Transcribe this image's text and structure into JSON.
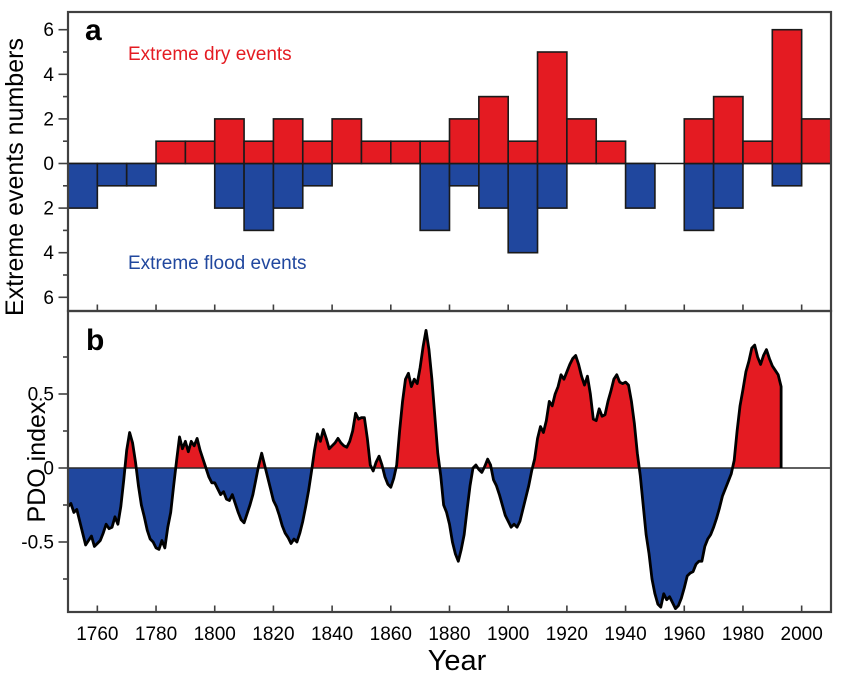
{
  "figure": {
    "xlabel": "Year",
    "xlim": [
      1750,
      2010
    ],
    "xticks": [
      1760,
      1780,
      1800,
      1820,
      1840,
      1860,
      1880,
      1900,
      1920,
      1940,
      1960,
      1980,
      2000
    ],
    "background": "#ffffff"
  },
  "colors": {
    "dry_red": "#e41b22",
    "flood_blue": "#20479e",
    "frame": "#404040",
    "bar_outline": "#1a1a1a",
    "curve": "#000000",
    "zero_line": "#1a1a1a"
  },
  "chart_data": [
    {
      "id": "panel_a",
      "type": "bar",
      "panel_label": "a",
      "ylabel": "Extreme events numbers",
      "bar_width_years": 10,
      "decade_start_years": [
        1750,
        1760,
        1770,
        1780,
        1790,
        1800,
        1810,
        1820,
        1830,
        1840,
        1850,
        1860,
        1870,
        1880,
        1890,
        1900,
        1910,
        1920,
        1930,
        1940,
        1950,
        1960,
        1970,
        1980,
        1990,
        2000
      ],
      "series": [
        {
          "name": "Extreme dry events",
          "direction": "positive",
          "color_key": "dry_red",
          "values": [
            0,
            0,
            0,
            1,
            1,
            2,
            1,
            2,
            1,
            2,
            1,
            1,
            1,
            2,
            3,
            1,
            5,
            2,
            1,
            0,
            0,
            2,
            3,
            1,
            6,
            2
          ]
        },
        {
          "name": "Extreme flood events",
          "direction": "negative",
          "color_key": "flood_blue",
          "values": [
            2,
            1,
            1,
            0,
            0,
            2,
            3,
            2,
            1,
            0,
            0,
            0,
            3,
            1,
            2,
            4,
            2,
            0,
            0,
            2,
            0,
            3,
            2,
            0,
            1,
            0
          ]
        }
      ],
      "ylim": [
        -6.6,
        6.8
      ],
      "yticks_major": [
        -6,
        -4,
        -2,
        0,
        2,
        4,
        6
      ],
      "ytick_labels": [
        "6",
        "4",
        "2",
        "0",
        "2",
        "4",
        "6"
      ],
      "yticks_minor": [
        -5,
        -3,
        -1,
        1,
        3,
        5
      ]
    },
    {
      "id": "panel_b",
      "type": "area",
      "panel_label": "b",
      "ylabel": "PDO index",
      "x_start_year": 1750,
      "x_step_years": 1,
      "values": [
        -0.26,
        -0.24,
        -0.3,
        -0.28,
        -0.36,
        -0.44,
        -0.52,
        -0.49,
        -0.46,
        -0.53,
        -0.51,
        -0.49,
        -0.44,
        -0.38,
        -0.41,
        -0.4,
        -0.33,
        -0.38,
        -0.26,
        -0.08,
        0.12,
        0.24,
        0.17,
        0.04,
        -0.12,
        -0.25,
        -0.33,
        -0.42,
        -0.48,
        -0.5,
        -0.54,
        -0.55,
        -0.49,
        -0.54,
        -0.4,
        -0.3,
        -0.12,
        0.05,
        0.21,
        0.13,
        0.18,
        0.11,
        0.18,
        0.15,
        0.2,
        0.12,
        0.06,
        0.0,
        -0.06,
        -0.1,
        -0.1,
        -0.14,
        -0.18,
        -0.16,
        -0.21,
        -0.22,
        -0.18,
        -0.24,
        -0.3,
        -0.35,
        -0.37,
        -0.31,
        -0.25,
        -0.18,
        -0.08,
        0.02,
        0.1,
        0.02,
        -0.06,
        -0.14,
        -0.22,
        -0.26,
        -0.32,
        -0.39,
        -0.44,
        -0.47,
        -0.51,
        -0.48,
        -0.5,
        -0.44,
        -0.36,
        -0.26,
        -0.15,
        -0.02,
        0.12,
        0.23,
        0.18,
        0.26,
        0.2,
        0.13,
        0.15,
        0.17,
        0.2,
        0.17,
        0.15,
        0.14,
        0.18,
        0.25,
        0.37,
        0.33,
        0.34,
        0.34,
        0.2,
        0.02,
        -0.02,
        0.04,
        0.08,
        0.02,
        -0.06,
        -0.11,
        -0.13,
        -0.07,
        0.02,
        0.25,
        0.45,
        0.6,
        0.64,
        0.55,
        0.6,
        0.57,
        0.68,
        0.82,
        0.93,
        0.8,
        0.6,
        0.35,
        0.1,
        -0.05,
        -0.25,
        -0.3,
        -0.38,
        -0.5,
        -0.58,
        -0.63,
        -0.55,
        -0.45,
        -0.28,
        -0.12,
        0.0,
        0.02,
        -0.01,
        -0.03,
        0.01,
        0.06,
        0.02,
        -0.08,
        -0.12,
        -0.18,
        -0.25,
        -0.32,
        -0.36,
        -0.4,
        -0.38,
        -0.4,
        -0.36,
        -0.28,
        -0.2,
        -0.12,
        -0.02,
        0.06,
        0.2,
        0.28,
        0.24,
        0.32,
        0.45,
        0.42,
        0.5,
        0.55,
        0.63,
        0.6,
        0.65,
        0.7,
        0.74,
        0.76,
        0.7,
        0.62,
        0.56,
        0.62,
        0.5,
        0.33,
        0.32,
        0.4,
        0.35,
        0.36,
        0.45,
        0.52,
        0.6,
        0.63,
        0.58,
        0.57,
        0.58,
        0.56,
        0.45,
        0.3,
        0.1,
        -0.05,
        -0.25,
        -0.45,
        -0.58,
        -0.75,
        -0.85,
        -0.92,
        -0.94,
        -0.85,
        -0.89,
        -0.87,
        -0.91,
        -0.95,
        -0.93,
        -0.88,
        -0.81,
        -0.73,
        -0.71,
        -0.7,
        -0.65,
        -0.63,
        -0.63,
        -0.53,
        -0.48,
        -0.45,
        -0.4,
        -0.34,
        -0.27,
        -0.19,
        -0.14,
        -0.09,
        -0.04,
        0.05,
        0.25,
        0.42,
        0.53,
        0.65,
        0.72,
        0.81,
        0.83,
        0.75,
        0.7,
        0.76,
        0.8,
        0.74,
        0.69,
        0.66,
        0.63,
        0.55
      ],
      "ylim": [
        -0.97,
        1.06
      ],
      "yticks_major": [
        -0.5,
        0,
        0.5
      ],
      "ytick_labels": [
        "-0.5",
        "0",
        "0.5"
      ],
      "yticks_minor": [
        -0.75,
        -0.25,
        0.25,
        0.75
      ]
    }
  ]
}
